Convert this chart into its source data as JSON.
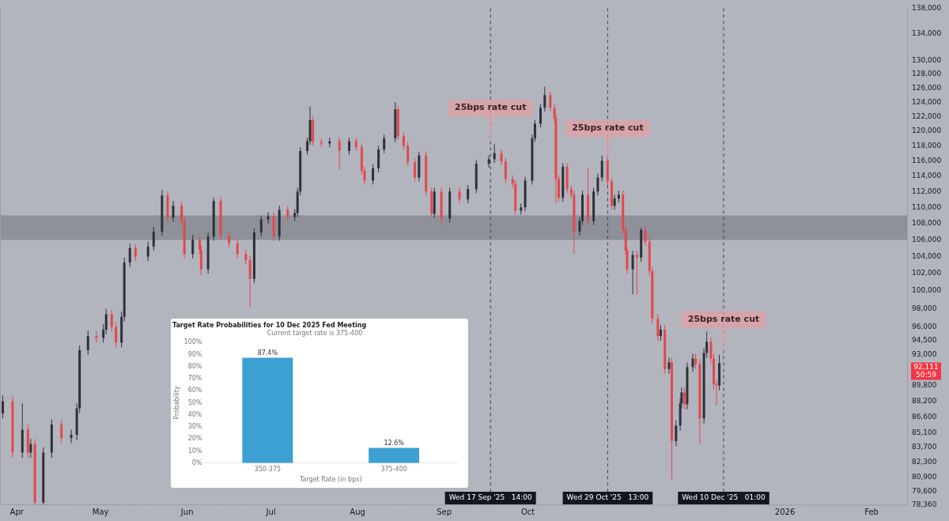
{
  "chart_data": [
    {
      "type": "candlestick",
      "log": true,
      "grid": false,
      "legend": false,
      "xlim": [
        "2025-03-26",
        "2026-02-14"
      ],
      "xticks": [
        {
          "value": "2025-04-01",
          "label": "Apr"
        },
        {
          "value": "2025-05-01",
          "label": "May"
        },
        {
          "value": "2025-06-01",
          "label": "Jun"
        },
        {
          "value": "2025-07-01",
          "label": "Jul"
        },
        {
          "value": "2025-08-01",
          "label": "Aug"
        },
        {
          "value": "2025-09-01",
          "label": "Sep"
        },
        {
          "value": "2025-10-01",
          "label": "Oct"
        },
        {
          "value": "2026-01-01",
          "label": "2026"
        },
        {
          "value": "2026-02-01",
          "label": "Feb"
        }
      ],
      "ylim": [
        78360,
        138000
      ],
      "yticks": [
        {
          "value": 78360,
          "label": "78,360"
        },
        {
          "value": 79600,
          "label": "79,600"
        },
        {
          "value": 80900,
          "label": "80,900"
        },
        {
          "value": 82300,
          "label": "82,300"
        },
        {
          "value": 83700,
          "label": "83,700"
        },
        {
          "value": 85100,
          "label": "85,100"
        },
        {
          "value": 86600,
          "label": "86,600"
        },
        {
          "value": 88200,
          "label": "88,200"
        },
        {
          "value": 89800,
          "label": "89,800"
        },
        {
          "value": 93000,
          "label": "93,000"
        },
        {
          "value": 94500,
          "label": "94,500"
        },
        {
          "value": 96000,
          "label": "96,000"
        },
        {
          "value": 98000,
          "label": "98,000"
        },
        {
          "value": 100000,
          "label": "100,000"
        },
        {
          "value": 102000,
          "label": "102,000"
        },
        {
          "value": 104000,
          "label": "104,000"
        },
        {
          "value": 106000,
          "label": "106,000"
        },
        {
          "value": 108000,
          "label": "108,000"
        },
        {
          "value": 110000,
          "label": "110,000"
        },
        {
          "value": 112000,
          "label": "112,000"
        },
        {
          "value": 114000,
          "label": "114,000"
        },
        {
          "value": 116000,
          "label": "116,000"
        },
        {
          "value": 118000,
          "label": "118,000"
        },
        {
          "value": 120000,
          "label": "120,000"
        },
        {
          "value": 122000,
          "label": "122,000"
        },
        {
          "value": 124000,
          "label": "124,000"
        },
        {
          "value": 126000,
          "label": "126,000"
        },
        {
          "value": 128000,
          "label": "128,000"
        },
        {
          "value": 130000,
          "label": "130,000"
        },
        {
          "value": 134000,
          "label": "134,000"
        },
        {
          "value": 138000,
          "label": "138,000"
        }
      ],
      "x": [
        "2025-03-27",
        "2025-03-30T12:00",
        "2025-04-03",
        "2025-04-05",
        "2025-04-06",
        "2025-04-07T12:00",
        "2025-04-10T12:00",
        "2025-04-13T12:00",
        "2025-04-17",
        "2025-04-20T12:00",
        "2025-04-22T12:00",
        "2025-04-23T12:00",
        "2025-04-26T12:00",
        "2025-04-29T12:00",
        "2025-05-02",
        "2025-05-03",
        "2025-05-05",
        "2025-05-06T12:00",
        "2025-05-08T12:00",
        "2025-05-09T12:00",
        "2025-05-11T12:00",
        "2025-05-13T12:00",
        "2025-05-18",
        "2025-05-20",
        "2025-05-23",
        "2025-05-25",
        "2025-05-27",
        "2025-05-30",
        "2025-05-31",
        "2025-06-03",
        "2025-06-05T12:00",
        "2025-06-06",
        "2025-06-08T12:00",
        "2025-06-10T12:00",
        "2025-06-13",
        "2025-06-16",
        "2025-06-19",
        "2025-06-22",
        "2025-06-23T12:00",
        "2025-06-25",
        "2025-06-27T12:00",
        "2025-06-30",
        "2025-07-02",
        "2025-07-04",
        "2025-07-07",
        "2025-07-09T12:00",
        "2025-07-10T12:00",
        "2025-07-11T12:00",
        "2025-07-14",
        "2025-07-15",
        "2025-07-16",
        "2025-07-19",
        "2025-07-22",
        "2025-07-25T12:00",
        "2025-07-29",
        "2025-07-31T12:00",
        "2025-08-02T12:00",
        "2025-08-03T12:00",
        "2025-08-06T12:00",
        "2025-08-08T12:00",
        "2025-08-10T12:00",
        "2025-08-14T12:00",
        "2025-08-15T12:00",
        "2025-08-17T12:00",
        "2025-08-19",
        "2025-08-21T12:00",
        "2025-08-23",
        "2025-08-25T12:00",
        "2025-08-27T12:00",
        "2025-08-28T12:00",
        "2025-08-31",
        "2025-09-03",
        "2025-09-06T12:00",
        "2025-09-09T12:00",
        "2025-09-12T12:00",
        "2025-09-17",
        "2025-09-19",
        "2025-09-21T12:00",
        "2025-09-23",
        "2025-09-25T12:00",
        "2025-09-26T12:00",
        "2025-09-28T12:00",
        "2025-09-30",
        "2025-10-02T12:00",
        "2025-10-03T12:00",
        "2025-10-05T12:00",
        "2025-10-07",
        "2025-10-09",
        "2025-10-10T12:00",
        "2025-10-11",
        "2025-10-12",
        "2025-10-13T12:00",
        "2025-10-15",
        "2025-10-16T12:00",
        "2025-10-17T12:00",
        "2025-10-19T12:00",
        "2025-10-20T12:00",
        "2025-10-22T12:00",
        "2025-10-24T12:00",
        "2025-10-26",
        "2025-10-27T12:00",
        "2025-10-29T12:00",
        "2025-10-31",
        "2025-11-01",
        "2025-11-02T12:00",
        "2025-11-04",
        "2025-11-05",
        "2025-11-05T12:00",
        "2025-11-07T12:00",
        "2025-11-09",
        "2025-11-10T12:00",
        "2025-11-12",
        "2025-11-13T12:00",
        "2025-11-14T12:00",
        "2025-11-16T12:00",
        "2025-11-17T12:00",
        "2025-11-19",
        "2025-11-20T12:00",
        "2025-11-21T12:00",
        "2025-11-23",
        "2025-11-24T12:00",
        "2025-11-25",
        "2025-11-26",
        "2025-11-27",
        "2025-11-29",
        "2025-11-30",
        "2025-12-01T12:00",
        "2025-12-03",
        "2025-12-04",
        "2025-12-05T12:00",
        "2025-12-06T12:00",
        "2025-12-07T12:00",
        "2025-12-08T12:00"
      ],
      "ohlc": [
        [
          87000,
          88800,
          86500,
          88200
        ],
        [
          88200,
          88700,
          82700,
          83200
        ],
        [
          83200,
          88000,
          82700,
          85400
        ],
        [
          85400,
          85900,
          82700,
          83200
        ],
        [
          83200,
          84500,
          82700,
          84000
        ],
        [
          84000,
          84500,
          78400,
          78600
        ],
        [
          78600,
          83700,
          78400,
          83200
        ],
        [
          83200,
          86400,
          82700,
          85900
        ],
        [
          85900,
          86400,
          84100,
          84600
        ],
        [
          84600,
          85400,
          84100,
          84900
        ],
        [
          84900,
          88000,
          84400,
          87500
        ],
        [
          87500,
          94000,
          87000,
          93500
        ],
        [
          93500,
          95600,
          93000,
          95000
        ],
        [
          95000,
          95500,
          94300,
          94800
        ],
        [
          94800,
          96300,
          94300,
          95700
        ],
        [
          95700,
          98000,
          95200,
          97400
        ],
        [
          97400,
          97900,
          95500,
          96000
        ],
        [
          96000,
          96500,
          93800,
          94300
        ],
        [
          94300,
          97700,
          93800,
          97100
        ],
        [
          97100,
          103900,
          96600,
          103300
        ],
        [
          103300,
          105600,
          102800,
          105000
        ],
        [
          105000,
          105500,
          103500,
          104000
        ],
        [
          104000,
          105800,
          103500,
          105200
        ],
        [
          105200,
          107600,
          104700,
          107000
        ],
        [
          107000,
          112200,
          106500,
          111500
        ],
        [
          111500,
          112000,
          108200,
          108700
        ],
        [
          108700,
          110800,
          108200,
          110200
        ],
        [
          110200,
          110700,
          107800,
          108300
        ],
        [
          108300,
          108800,
          103800,
          104300
        ],
        [
          104300,
          106600,
          103800,
          106000
        ],
        [
          106000,
          106500,
          104300,
          104800
        ],
        [
          104800,
          105300,
          101800,
          102500
        ],
        [
          102500,
          106900,
          102000,
          106400
        ],
        [
          106400,
          111200,
          105900,
          110800
        ],
        [
          110800,
          111300,
          106000,
          106500
        ],
        [
          106500,
          107000,
          105100,
          105600
        ],
        [
          105600,
          106100,
          103800,
          104300
        ],
        [
          104300,
          104800,
          103100,
          103600
        ],
        [
          103600,
          104100,
          98200,
          101400
        ],
        [
          101400,
          107400,
          100900,
          106900
        ],
        [
          106900,
          109000,
          106400,
          108500
        ],
        [
          108500,
          109400,
          108000,
          108900
        ],
        [
          108900,
          109400,
          105900,
          106400
        ],
        [
          106400,
          110200,
          105900,
          109700
        ],
        [
          109700,
          110200,
          108300,
          108800
        ],
        [
          108800,
          109800,
          108300,
          109300
        ],
        [
          109300,
          112500,
          108800,
          112000
        ],
        [
          112000,
          117800,
          111500,
          117300
        ],
        [
          117300,
          119100,
          116800,
          118600
        ],
        [
          118600,
          123400,
          118100,
          121500
        ],
        [
          121500,
          122000,
          118000,
          118500
        ],
        [
          118500,
          119000,
          117800,
          118300
        ],
        [
          118300,
          119100,
          117800,
          118600
        ],
        [
          118600,
          119100,
          114800,
          117300
        ],
        [
          117300,
          119100,
          116800,
          118600
        ],
        [
          118600,
          119100,
          117300,
          117800
        ],
        [
          117800,
          118300,
          114200,
          114700
        ],
        [
          114700,
          115200,
          112900,
          113400
        ],
        [
          113400,
          115500,
          112900,
          115000
        ],
        [
          115000,
          118000,
          114500,
          117500
        ],
        [
          117500,
          119500,
          117000,
          119000
        ],
        [
          119000,
          124000,
          118500,
          123000
        ],
        [
          123000,
          123500,
          118800,
          119300
        ],
        [
          119300,
          119800,
          117500,
          118000
        ],
        [
          118000,
          118500,
          115300,
          115800
        ],
        [
          115800,
          116300,
          113300,
          113800
        ],
        [
          113800,
          117200,
          113300,
          116700
        ],
        [
          116700,
          117200,
          111500,
          112000
        ],
        [
          112000,
          112500,
          108700,
          109200
        ],
        [
          109200,
          112500,
          108700,
          112000
        ],
        [
          112000,
          112500,
          107800,
          108600
        ],
        [
          108600,
          112500,
          108100,
          112000
        ],
        [
          112000,
          112500,
          110500,
          111000
        ],
        [
          111000,
          112800,
          110500,
          112300
        ],
        [
          112300,
          116100,
          111800,
          115600
        ],
        [
          115600,
          116700,
          115100,
          116200
        ],
        [
          116200,
          118200,
          115700,
          117000
        ],
        [
          117000,
          117500,
          115400,
          115900
        ],
        [
          115900,
          116400,
          113100,
          113600
        ],
        [
          113600,
          114100,
          112500,
          113000
        ],
        [
          113000,
          113500,
          109100,
          109600
        ],
        [
          109600,
          110500,
          109100,
          110000
        ],
        [
          110000,
          113900,
          109500,
          113400
        ],
        [
          113400,
          119500,
          112900,
          119000
        ],
        [
          119000,
          121500,
          118500,
          121000
        ],
        [
          121000,
          123700,
          120500,
          123200
        ],
        [
          123200,
          126200,
          122700,
          125000
        ],
        [
          125000,
          125500,
          122700,
          123200
        ],
        [
          123200,
          123700,
          121200,
          121700
        ],
        [
          121700,
          122200,
          110500,
          113600
        ],
        [
          113600,
          114100,
          110700,
          111200
        ],
        [
          111200,
          115700,
          110700,
          115200
        ],
        [
          115200,
          115700,
          111800,
          112300
        ],
        [
          112300,
          112800,
          111100,
          111600
        ],
        [
          111600,
          112100,
          104300,
          107000
        ],
        [
          107000,
          108800,
          106500,
          108300
        ],
        [
          108300,
          112100,
          107800,
          111600
        ],
        [
          111600,
          115000,
          107800,
          108300
        ],
        [
          108300,
          112500,
          107800,
          112000
        ],
        [
          112000,
          114300,
          111500,
          113800
        ],
        [
          113800,
          116700,
          113300,
          116000
        ],
        [
          116000,
          116500,
          112800,
          113300
        ],
        [
          113300,
          113800,
          109700,
          110200
        ],
        [
          110200,
          111600,
          109700,
          111100
        ],
        [
          111100,
          112100,
          110600,
          111600
        ],
        [
          111600,
          112100,
          106700,
          107200
        ],
        [
          107200,
          107700,
          104200,
          104700
        ],
        [
          104700,
          105200,
          102000,
          102500
        ],
        [
          102500,
          104700,
          99600,
          104200
        ],
        [
          104200,
          104700,
          99600,
          103900
        ],
        [
          103900,
          107500,
          103400,
          107200
        ],
        [
          107200,
          107700,
          105300,
          105800
        ],
        [
          105800,
          106300,
          101800,
          102300
        ],
        [
          102300,
          102800,
          96400,
          96900
        ],
        [
          96900,
          97400,
          94500,
          95000
        ],
        [
          95000,
          96200,
          94500,
          95700
        ],
        [
          95700,
          96200,
          91000,
          91500
        ],
        [
          91500,
          92700,
          91000,
          92200
        ],
        [
          92200,
          92700,
          80700,
          84300
        ],
        [
          84300,
          86300,
          83800,
          85800
        ],
        [
          85800,
          88500,
          85300,
          88000
        ],
        [
          88000,
          89600,
          87500,
          89100
        ],
        [
          89100,
          89600,
          87400,
          87900
        ],
        [
          87900,
          92200,
          87400,
          91700
        ],
        [
          91700,
          93100,
          91200,
          92600
        ],
        [
          92600,
          93100,
          91500,
          92000
        ],
        [
          92000,
          92500,
          84000,
          86500
        ],
        [
          86500,
          93700,
          86000,
          93200
        ],
        [
          93200,
          95500,
          92700,
          94400
        ],
        [
          94400,
          94900,
          92100,
          92600
        ],
        [
          92600,
          93100,
          89400,
          89900
        ],
        [
          89900,
          90400,
          87800,
          89800
        ],
        [
          89800,
          93000,
          89300,
          92111
        ]
      ],
      "bands": [
        {
          "axis": "y",
          "from": 106000,
          "to": 109000,
          "color": "#8e9199"
        }
      ],
      "ref_lines": [
        {
          "axis": "x",
          "value": "2025-09-17T14:00",
          "label": "Wed 17 Sep '25   14:00",
          "color": "#3a3d45",
          "line_style": "dashed"
        },
        {
          "axis": "x",
          "value": "2025-10-29T13:00",
          "label": "Wed 29 Oct '25   13:00",
          "color": "#3a3d45",
          "line_style": "dashed"
        },
        {
          "axis": "x",
          "value": "2025-12-10T01:00",
          "label": "Wed 10 Dec '25   01:00",
          "color": "#3a3d45",
          "line_style": "dashed"
        }
      ],
      "annotations": [
        {
          "text": "25bps rate cut",
          "x": "2025-09-17T14:00",
          "y": 118300
        },
        {
          "text": "25bps rate cut",
          "x": "2025-10-29T13:00",
          "y": 115600
        },
        {
          "text": "25bps rate cut",
          "x": "2025-12-10T01:00",
          "y": 93000
        },
        "92,111\n50:59"
      ]
    },
    {
      "type": "bar",
      "title": "Target Rate Probabilities for 10 Dec 2025 Fed Meeting",
      "subtitle": "Current target rate is 375-400",
      "xlabel": "Target Rate (in bps)",
      "ylabel": "Probability",
      "grid": false,
      "legend": false,
      "categories": [
        "350-375",
        "375-400"
      ],
      "values": [
        87.4,
        12.6
      ],
      "color": "#3da0d3",
      "value_labels": [
        "87.4%",
        "12.6%"
      ],
      "ylim": [
        0,
        100
      ],
      "yticks": [
        {
          "value": 0,
          "label": "0%"
        },
        {
          "value": 10,
          "label": "10%"
        },
        {
          "value": 20,
          "label": "20%"
        },
        {
          "value": 30,
          "label": "30%"
        },
        {
          "value": 40,
          "label": "40%"
        },
        {
          "value": 50,
          "label": "50%"
        },
        {
          "value": 60,
          "label": "60%"
        },
        {
          "value": 70,
          "label": "70%"
        },
        {
          "value": 80,
          "label": "80%"
        },
        {
          "value": 90,
          "label": "90%"
        },
        {
          "value": 100,
          "label": "100%"
        }
      ]
    }
  ]
}
